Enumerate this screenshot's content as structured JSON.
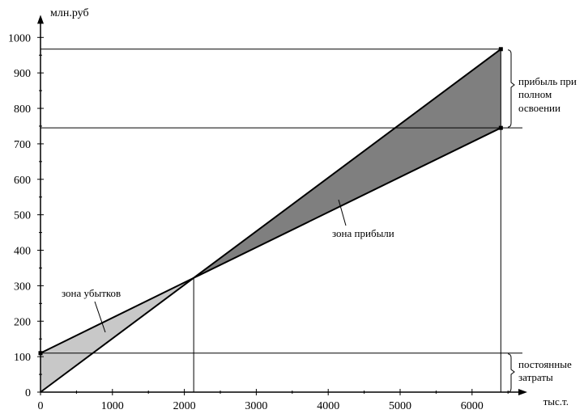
{
  "chart_data": {
    "type": "line",
    "ylabel": "млн.руб",
    "xlabel": "тыс.т.",
    "xlim": [
      0,
      6700
    ],
    "ylim": [
      0,
      1050
    ],
    "xticks": [
      0,
      1000,
      2000,
      3000,
      4000,
      5000,
      6000
    ],
    "yticks": [
      0,
      100,
      200,
      300,
      400,
      500,
      600,
      700,
      800,
      900,
      1000
    ],
    "grid": false,
    "series": [
      {
        "values": [
          [
            0,
            0
          ],
          [
            2130,
            322
          ],
          [
            6400,
            967
          ]
        ]
      },
      {
        "values": [
          [
            0,
            110
          ],
          [
            2130,
            322
          ],
          [
            6400,
            745
          ]
        ]
      }
    ],
    "break_even": {
      "x": 2130,
      "y": 322
    },
    "full_capacity": {
      "x": 6400,
      "revenue": 967,
      "cost": 745
    },
    "fixed_costs": 110,
    "colors": {
      "loss_zone": "#c8c8c8",
      "profit_zone": "#7f7f7f",
      "line": "#000000"
    },
    "annotations": {
      "loss_zone": "зона убытков",
      "profit_zone": "зона прибыли",
      "profit_full_1": "прибыль при",
      "profit_full_2": "полном",
      "profit_full_3": "освоении",
      "fixed_1": "постоянные",
      "fixed_2": "затраты"
    }
  }
}
